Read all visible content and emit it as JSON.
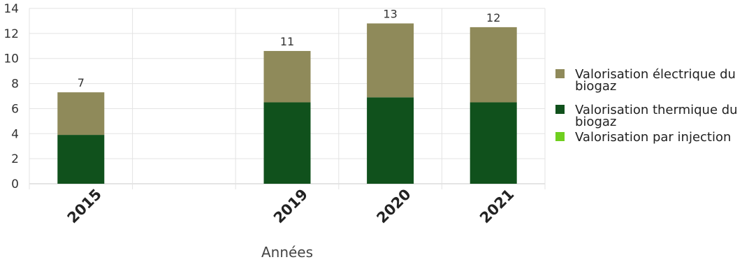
{
  "chart_data": {
    "type": "bar",
    "stacked": true,
    "categories": [
      "2015",
      "",
      "2019",
      "2020",
      "2021"
    ],
    "series": [
      {
        "name": "Valorisation électrique du biogaz",
        "color": "#8f8a5a",
        "values": [
          3.4,
          0,
          4.1,
          5.9,
          6.0
        ]
      },
      {
        "name": "Valorisation thermique du biogaz",
        "color": "#10511c",
        "values": [
          3.9,
          0,
          6.5,
          6.9,
          6.5
        ]
      },
      {
        "name": "Valorisation par injection",
        "color": "#6fcf1f",
        "values": [
          0,
          0,
          0,
          0,
          0
        ]
      }
    ],
    "totals_labels": [
      "7",
      "",
      "11",
      "13",
      "12"
    ],
    "title": "",
    "xlabel": "Années",
    "ylabel": "",
    "ylim": [
      0,
      14
    ],
    "yticks": [
      "0",
      "2",
      "4",
      "6",
      "8",
      "10",
      "12",
      "14"
    ],
    "grid": true,
    "legend_position": "right"
  }
}
